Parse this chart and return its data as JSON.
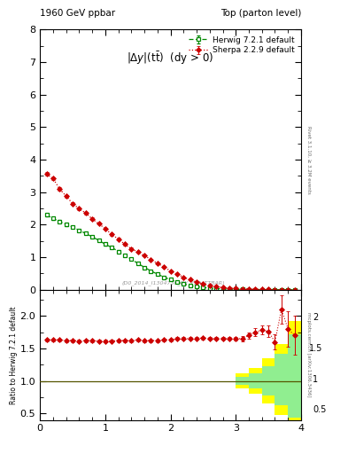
{
  "title_left": "1960 GeV ppbar",
  "title_right": "Top (parton level)",
  "ylabel_ratio": "Ratio to Herwig 7.2.1 default",
  "right_label_top": "Rivet 3.1.10, ≥ 3.2M events",
  "right_label_bot": "mcplots.cern.ch [arXiv:1306.3436]",
  "plot_title": "|\\Delta y|(t\\bar{t})  (dy > 0)",
  "herwig_x": [
    0.1,
    0.2,
    0.3,
    0.4,
    0.5,
    0.6,
    0.7,
    0.8,
    0.9,
    1.0,
    1.1,
    1.2,
    1.3,
    1.4,
    1.5,
    1.6,
    1.7,
    1.8,
    1.9,
    2.0,
    2.1,
    2.2,
    2.3,
    2.4,
    2.5,
    2.6,
    2.7,
    2.8,
    2.9,
    3.0,
    3.1,
    3.2,
    3.3,
    3.4,
    3.5,
    3.6,
    3.7,
    3.8,
    3.9
  ],
  "herwig_y": [
    2.3,
    2.19,
    2.1,
    2.01,
    1.93,
    1.83,
    1.73,
    1.63,
    1.52,
    1.4,
    1.3,
    1.18,
    1.06,
    0.94,
    0.81,
    0.69,
    0.58,
    0.48,
    0.39,
    0.31,
    0.24,
    0.18,
    0.13,
    0.1,
    0.07,
    0.05,
    0.04,
    0.03,
    0.02,
    0.015,
    0.011,
    0.008,
    0.006,
    0.005,
    0.004,
    0.003,
    0.002,
    0.001,
    0.001
  ],
  "herwig_yerr": [
    0.04,
    0.04,
    0.04,
    0.04,
    0.04,
    0.03,
    0.03,
    0.03,
    0.03,
    0.03,
    0.03,
    0.03,
    0.02,
    0.02,
    0.02,
    0.02,
    0.02,
    0.01,
    0.01,
    0.01,
    0.01,
    0.01,
    0.01,
    0.005,
    0.004,
    0.003,
    0.003,
    0.002,
    0.002,
    0.001,
    0.001,
    0.001,
    0.001,
    0.001,
    0.001,
    0.001,
    0.001,
    0.001,
    0.001
  ],
  "sherpa_x": [
    0.1,
    0.2,
    0.3,
    0.4,
    0.5,
    0.6,
    0.7,
    0.8,
    0.9,
    1.0,
    1.1,
    1.2,
    1.3,
    1.4,
    1.5,
    1.6,
    1.7,
    1.8,
    1.9,
    2.0,
    2.1,
    2.2,
    2.3,
    2.4,
    2.5,
    2.6,
    2.7,
    2.8,
    2.9,
    3.0,
    3.1,
    3.2,
    3.3,
    3.4,
    3.5,
    3.6,
    3.7,
    3.8,
    3.9
  ],
  "sherpa_y": [
    3.56,
    3.42,
    3.1,
    2.88,
    2.65,
    2.49,
    2.36,
    2.18,
    2.03,
    1.88,
    1.7,
    1.56,
    1.4,
    1.26,
    1.16,
    1.05,
    0.93,
    0.81,
    0.7,
    0.58,
    0.48,
    0.39,
    0.31,
    0.24,
    0.18,
    0.13,
    0.1,
    0.07,
    0.05,
    0.04,
    0.03,
    0.02,
    0.015,
    0.012,
    0.009,
    0.006,
    0.004,
    0.003,
    0.002
  ],
  "sherpa_yerr": [
    0.05,
    0.05,
    0.05,
    0.04,
    0.04,
    0.04,
    0.04,
    0.04,
    0.03,
    0.03,
    0.03,
    0.03,
    0.03,
    0.03,
    0.02,
    0.02,
    0.02,
    0.02,
    0.02,
    0.01,
    0.01,
    0.01,
    0.01,
    0.01,
    0.01,
    0.01,
    0.005,
    0.004,
    0.003,
    0.003,
    0.002,
    0.002,
    0.001,
    0.001,
    0.001,
    0.001,
    0.001,
    0.001,
    0.001
  ],
  "ratio_x": [
    0.1,
    0.2,
    0.3,
    0.4,
    0.5,
    0.6,
    0.7,
    0.8,
    0.9,
    1.0,
    1.1,
    1.2,
    1.3,
    1.4,
    1.5,
    1.6,
    1.7,
    1.8,
    1.9,
    2.0,
    2.1,
    2.2,
    2.3,
    2.4,
    2.5,
    2.6,
    2.7,
    2.8,
    2.9,
    3.0,
    3.1,
    3.2,
    3.3,
    3.4,
    3.5,
    3.6,
    3.7,
    3.8,
    3.9
  ],
  "ratio_y": [
    1.63,
    1.63,
    1.63,
    1.62,
    1.62,
    1.61,
    1.62,
    1.62,
    1.61,
    1.61,
    1.61,
    1.62,
    1.62,
    1.62,
    1.63,
    1.62,
    1.62,
    1.62,
    1.63,
    1.63,
    1.65,
    1.65,
    1.65,
    1.65,
    1.66,
    1.65,
    1.65,
    1.65,
    1.65,
    1.65,
    1.65,
    1.7,
    1.75,
    1.78,
    1.76,
    1.6,
    2.1,
    1.8,
    1.7
  ],
  "ratio_yerr": [
    0.02,
    0.02,
    0.02,
    0.02,
    0.02,
    0.02,
    0.02,
    0.02,
    0.02,
    0.02,
    0.02,
    0.02,
    0.02,
    0.02,
    0.02,
    0.02,
    0.02,
    0.02,
    0.02,
    0.02,
    0.02,
    0.02,
    0.02,
    0.02,
    0.02,
    0.02,
    0.02,
    0.02,
    0.02,
    0.03,
    0.04,
    0.05,
    0.06,
    0.07,
    0.09,
    0.12,
    0.22,
    0.27,
    0.3
  ],
  "yellow_band_edges": [
    3.0,
    3.2,
    3.4,
    3.6,
    3.8,
    4.0
  ],
  "yellow_band_lo": [
    0.88,
    0.8,
    0.65,
    0.48,
    0.33,
    0.3
  ],
  "yellow_band_hi": [
    1.12,
    1.2,
    1.35,
    1.57,
    1.92,
    2.05
  ],
  "green_band_edges": [
    3.0,
    3.2,
    3.4,
    3.6,
    3.8,
    4.0
  ],
  "green_band_lo": [
    0.94,
    0.88,
    0.78,
    0.63,
    0.44,
    0.42
  ],
  "green_band_hi": [
    1.06,
    1.12,
    1.22,
    1.42,
    1.72,
    1.78
  ],
  "herwig_color": "#008800",
  "sherpa_color": "#cc0000",
  "main_ylim": [
    0,
    8
  ],
  "ratio_ylim": [
    0.4,
    2.4
  ],
  "xlim": [
    0,
    4
  ],
  "watermark": "(D0_2014_I1304736_DY_FSA_TTBAR)"
}
